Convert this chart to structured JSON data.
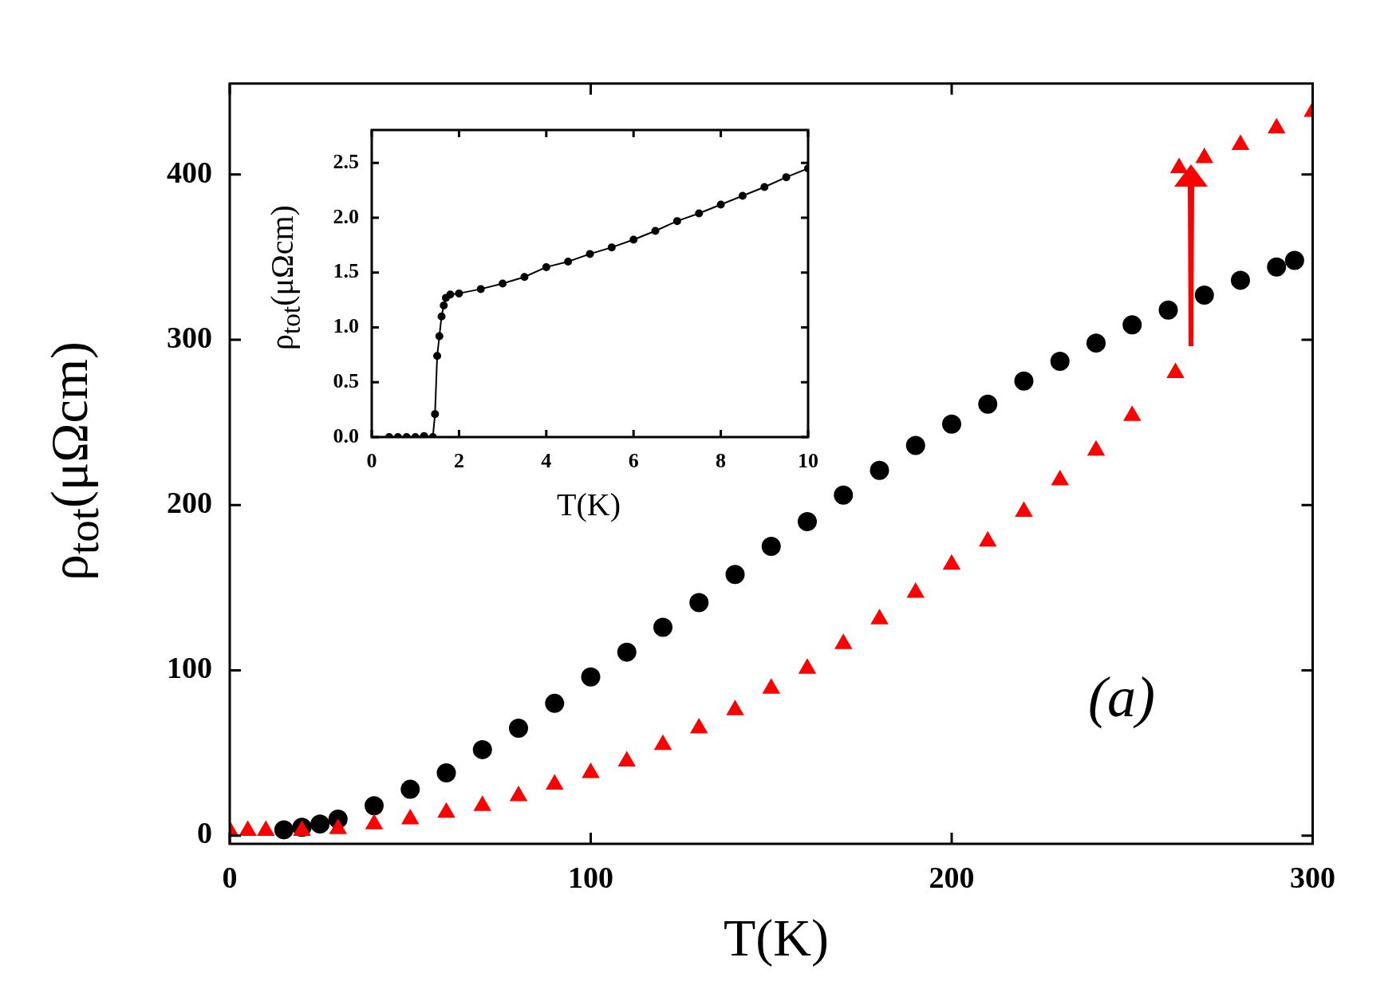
{
  "chart_data": [
    {
      "type": "scatter",
      "xlabel": "T(K)",
      "ylabel": "ρ$_{tot}$(μΩcm)",
      "xlim": [
        0,
        300
      ],
      "xticks": [
        0,
        100,
        200,
        300
      ],
      "ylim": [
        -5,
        455
      ],
      "yticks": [
        0,
        100,
        200,
        300,
        400
      ],
      "annotations": [
        "(a)"
      ],
      "series": [
        {
          "color": "#000000",
          "marker": "circle",
          "x": [
            15,
            20,
            25,
            30,
            40,
            50,
            60,
            70,
            80,
            90,
            100,
            110,
            120,
            130,
            140,
            150,
            160,
            170,
            180,
            190,
            200,
            210,
            220,
            230,
            240,
            250,
            260,
            270,
            280,
            290,
            295
          ],
          "values": [
            3.5,
            5,
            7,
            10,
            18,
            28,
            38,
            52,
            65,
            80,
            96,
            111,
            126,
            141,
            158,
            175,
            190,
            206,
            221,
            236,
            249,
            261,
            275,
            287,
            298,
            309,
            318,
            327,
            336,
            344,
            348
          ]
        },
        {
          "color": "#ff0000",
          "marker": "triangle",
          "x": [
            0,
            5,
            10,
            20,
            30,
            40,
            50,
            60,
            70,
            80,
            90,
            100,
            110,
            120,
            130,
            140,
            150,
            160,
            170,
            180,
            190,
            200,
            210,
            220,
            230,
            240,
            250,
            262,
            263,
            270,
            280,
            290,
            300
          ],
          "values": [
            3,
            3,
            3,
            3,
            4,
            7,
            10,
            14,
            18,
            24,
            31,
            38,
            45,
            55,
            65,
            76,
            89,
            101,
            116,
            131,
            147,
            164,
            178,
            196,
            215,
            233,
            254,
            280,
            404,
            410,
            418,
            428,
            438
          ]
        }
      ]
    },
    {
      "type": "line",
      "xlabel": "T(K)",
      "ylabel": "ρ$_{tot}$(μΩcm)",
      "xlim": [
        0,
        10
      ],
      "xticks": [
        0,
        2,
        4,
        6,
        8,
        10
      ],
      "ylim": [
        0,
        2.8
      ],
      "yticks": [
        {
          "value": 0,
          "label": "0.0"
        },
        0.5,
        {
          "value": 1,
          "label": "1.0"
        },
        1.5,
        {
          "value": 2,
          "label": "2.0"
        },
        2.5
      ],
      "marker": "circle",
      "series": [
        {
          "color": "#000000",
          "x": [
            0.4,
            0.6,
            0.8,
            1.0,
            1.2,
            1.4,
            1.45,
            1.5,
            1.55,
            1.6,
            1.65,
            1.7,
            1.8,
            2.0,
            2.5,
            3.0,
            3.5,
            4.0,
            4.5,
            5.0,
            5.5,
            6.0,
            6.5,
            7.0,
            7.5,
            8.0,
            8.5,
            9.0,
            9.5,
            10.0
          ],
          "values": [
            0,
            0,
            0,
            0,
            0.01,
            0,
            0.21,
            0.74,
            0.92,
            1.1,
            1.2,
            1.27,
            1.3,
            1.31,
            1.35,
            1.4,
            1.46,
            1.55,
            1.6,
            1.67,
            1.73,
            1.8,
            1.88,
            1.97,
            2.04,
            2.12,
            2.2,
            2.28,
            2.37,
            2.45
          ]
        }
      ]
    }
  ]
}
